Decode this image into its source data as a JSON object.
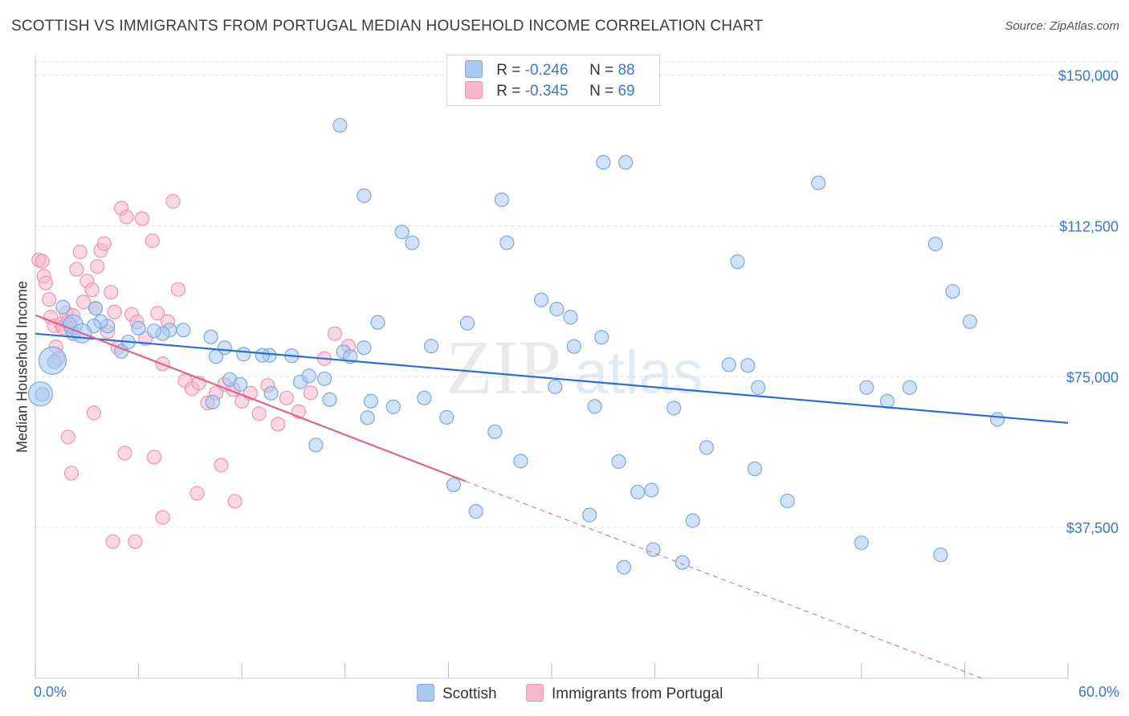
{
  "title": "SCOTTISH VS IMMIGRANTS FROM PORTUGAL MEDIAN HOUSEHOLD INCOME CORRELATION CHART",
  "source": "Source: ZipAtlas.com",
  "watermark": {
    "zip": "ZIP",
    "atlas": "atlas"
  },
  "legend": {
    "rows": [
      {
        "r_label": "R = ",
        "r_value": "-0.246",
        "n_label": "N = ",
        "n_value": "88"
      },
      {
        "r_label": "R = ",
        "r_value": "-0.345",
        "n_label": "N = ",
        "n_value": "69"
      }
    ]
  },
  "bottom_legend": {
    "scottish": "Scottish",
    "portugal": "Immigrants from Portugal"
  },
  "colors": {
    "blue_fill": "#a9c9f2",
    "blue_stroke": "#7aa9e0",
    "blue_line": "#2a6fce",
    "pink_fill": "#f7b8cc",
    "pink_stroke": "#ee94b1",
    "pink_line": "#e0628e",
    "axis_text": "#3a78c9",
    "grid": "#dddddd"
  },
  "chart_data": {
    "type": "scatter",
    "title": "SCOTTISH VS IMMIGRANTS FROM PORTUGAL MEDIAN HOUSEHOLD INCOME CORRELATION CHART",
    "xlabel": "",
    "ylabel": "Median Household Income",
    "x_unit": "percent",
    "xlim": [
      0,
      60
    ],
    "ylim": [
      0,
      157500
    ],
    "x_tick_labels": [
      "0.0%",
      "60.0%"
    ],
    "y_ticks": [
      37500,
      75000,
      112500,
      150000
    ],
    "y_tick_labels": [
      "$37,500",
      "$75,000",
      "$112,500",
      "$150,000"
    ],
    "series": [
      {
        "name": "Scottish",
        "R": -0.246,
        "N": 88,
        "trend": {
          "x0": 0,
          "y0": 85700,
          "x1": 60,
          "y1": 63500
        },
        "points": [
          [
            17.7,
            137500
          ],
          [
            19.1,
            120000
          ],
          [
            21.3,
            111000
          ],
          [
            21.9,
            108300
          ],
          [
            27.1,
            119000
          ],
          [
            27.4,
            108300
          ],
          [
            33.0,
            128300
          ],
          [
            34.3,
            128300
          ],
          [
            45.5,
            123200
          ],
          [
            40.8,
            103600
          ],
          [
            52.3,
            108000
          ],
          [
            53.3,
            96200
          ],
          [
            54.3,
            88700
          ],
          [
            29.4,
            94100
          ],
          [
            30.3,
            91800
          ],
          [
            31.1,
            89800
          ],
          [
            30.2,
            72500
          ],
          [
            31.3,
            82500
          ],
          [
            32.9,
            84800
          ],
          [
            23.0,
            82600
          ],
          [
            19.9,
            88500
          ],
          [
            25.1,
            88300
          ],
          [
            19.1,
            82200
          ],
          [
            17.9,
            81200
          ],
          [
            18.3,
            80000
          ],
          [
            14.9,
            80200
          ],
          [
            13.6,
            80300
          ],
          [
            13.2,
            80300
          ],
          [
            12.1,
            80600
          ],
          [
            10.2,
            84900
          ],
          [
            11.0,
            82200
          ],
          [
            10.5,
            80000
          ],
          [
            8.6,
            86600
          ],
          [
            7.8,
            86600
          ],
          [
            7.4,
            85700
          ],
          [
            6.9,
            86400
          ],
          [
            6.0,
            87100
          ],
          [
            5.4,
            83600
          ],
          [
            5.0,
            81300
          ],
          [
            3.5,
            92000
          ],
          [
            4.2,
            87600
          ],
          [
            3.8,
            88700
          ],
          [
            3.4,
            87600
          ],
          [
            2.0,
            88000
          ],
          [
            2.2,
            85700
          ],
          [
            1.1,
            78700
          ],
          [
            0.4,
            70600
          ],
          [
            1.6,
            92300
          ],
          [
            10.3,
            68700
          ],
          [
            11.3,
            74300
          ],
          [
            11.9,
            73100
          ],
          [
            13.7,
            70900
          ],
          [
            15.4,
            73700
          ],
          [
            15.9,
            75200
          ],
          [
            16.8,
            74500
          ],
          [
            17.1,
            69300
          ],
          [
            19.3,
            64800
          ],
          [
            19.5,
            68900
          ],
          [
            20.8,
            67500
          ],
          [
            22.6,
            69700
          ],
          [
            23.9,
            64900
          ],
          [
            26.7,
            61300
          ],
          [
            32.5,
            67600
          ],
          [
            37.1,
            67200
          ],
          [
            40.3,
            78000
          ],
          [
            41.4,
            77800
          ],
          [
            42.0,
            72300
          ],
          [
            48.3,
            72300
          ],
          [
            49.5,
            68900
          ],
          [
            50.8,
            72300
          ],
          [
            55.9,
            64400
          ],
          [
            16.3,
            58000
          ],
          [
            24.3,
            48100
          ],
          [
            25.6,
            41500
          ],
          [
            28.2,
            54000
          ],
          [
            32.2,
            40600
          ],
          [
            33.9,
            53900
          ],
          [
            35.0,
            46300
          ],
          [
            35.8,
            46800
          ],
          [
            39.0,
            57400
          ],
          [
            41.8,
            52100
          ],
          [
            43.7,
            44100
          ],
          [
            38.2,
            39200
          ],
          [
            34.2,
            27600
          ],
          [
            35.9,
            32000
          ],
          [
            37.6,
            28800
          ],
          [
            48.0,
            33700
          ],
          [
            52.6,
            30700
          ]
        ]
      },
      {
        "name": "Immigrants from Portugal",
        "R": -0.345,
        "N": 69,
        "trend": {
          "x0": 0,
          "y0": 90300,
          "x1": 25,
          "y1": 49000,
          "dashed_to_x": 55,
          "dashed_to_y": 0
        },
        "points": [
          [
            0.2,
            104000
          ],
          [
            0.4,
            103700
          ],
          [
            0.5,
            100000
          ],
          [
            0.6,
            98300
          ],
          [
            0.8,
            94200
          ],
          [
            0.9,
            89800
          ],
          [
            1.1,
            87700
          ],
          [
            1.2,
            82400
          ],
          [
            1.3,
            79500
          ],
          [
            1.5,
            88100
          ],
          [
            1.6,
            87200
          ],
          [
            1.8,
            90900
          ],
          [
            1.9,
            88700
          ],
          [
            2.1,
            86800
          ],
          [
            2.2,
            90200
          ],
          [
            2.4,
            101700
          ],
          [
            2.6,
            106000
          ],
          [
            2.8,
            93600
          ],
          [
            3.0,
            98800
          ],
          [
            3.3,
            96600
          ],
          [
            3.5,
            92000
          ],
          [
            3.6,
            102400
          ],
          [
            3.8,
            106400
          ],
          [
            4.0,
            108100
          ],
          [
            4.2,
            86200
          ],
          [
            4.4,
            96000
          ],
          [
            4.6,
            91100
          ],
          [
            4.8,
            82200
          ],
          [
            5.0,
            116900
          ],
          [
            5.3,
            114700
          ],
          [
            5.6,
            90500
          ],
          [
            5.9,
            88600
          ],
          [
            6.2,
            114300
          ],
          [
            6.4,
            84500
          ],
          [
            6.8,
            108800
          ],
          [
            7.1,
            90800
          ],
          [
            7.4,
            78200
          ],
          [
            7.7,
            88700
          ],
          [
            8.0,
            118600
          ],
          [
            8.3,
            96700
          ],
          [
            8.7,
            74000
          ],
          [
            9.1,
            72000
          ],
          [
            9.5,
            73400
          ],
          [
            10.0,
            68500
          ],
          [
            10.5,
            70900
          ],
          [
            11.0,
            73100
          ],
          [
            11.5,
            71800
          ],
          [
            12.0,
            68900
          ],
          [
            12.5,
            70900
          ],
          [
            13.0,
            65800
          ],
          [
            13.5,
            72800
          ],
          [
            14.1,
            63200
          ],
          [
            14.6,
            69700
          ],
          [
            15.3,
            66300
          ],
          [
            16.0,
            71000
          ],
          [
            16.8,
            79500
          ],
          [
            17.4,
            85700
          ],
          [
            18.2,
            82600
          ],
          [
            1.9,
            60000
          ],
          [
            2.1,
            51000
          ],
          [
            3.4,
            66000
          ],
          [
            4.5,
            34000
          ],
          [
            5.2,
            56000
          ],
          [
            5.8,
            34000
          ],
          [
            6.9,
            55000
          ],
          [
            7.4,
            40000
          ],
          [
            9.4,
            46000
          ],
          [
            10.8,
            53000
          ],
          [
            11.6,
            44000
          ]
        ]
      }
    ]
  }
}
